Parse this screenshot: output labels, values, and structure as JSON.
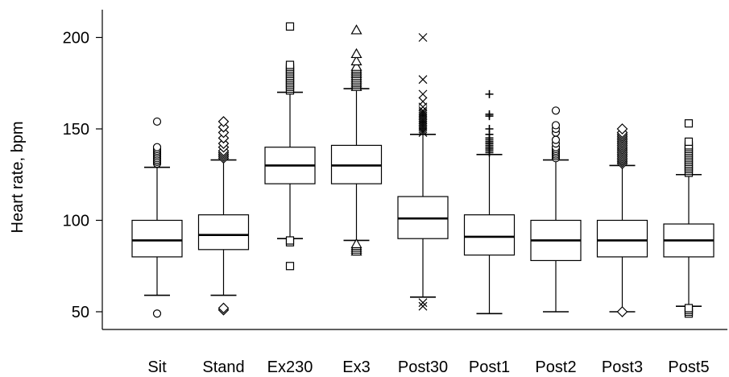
{
  "chart_data": {
    "type": "boxplot",
    "ylabel": "Heart rate, bpm",
    "ylim": [
      45,
      215
    ],
    "yticks": [
      50,
      100,
      150,
      200
    ],
    "grid": false,
    "categories": [
      "Sit",
      "Stand",
      "Ex230",
      "Ex3",
      "Post30",
      "Post1",
      "Post2",
      "Post3",
      "Post5"
    ],
    "boxes": [
      {
        "category": "Sit",
        "whisker_low": 59,
        "q1": 80,
        "median": 89,
        "q3": 100,
        "whisker_high": 129,
        "marker": "circle",
        "outliers": [
          49,
          131,
          132,
          133,
          134,
          135,
          136,
          137,
          138,
          139,
          140,
          154
        ]
      },
      {
        "category": "Stand",
        "whisker_low": 59,
        "q1": 84,
        "median": 92,
        "q3": 103,
        "whisker_high": 133,
        "marker": "diamond",
        "outliers": [
          51,
          52,
          134,
          135,
          136,
          137,
          138,
          140,
          142,
          145,
          148,
          151,
          154
        ]
      },
      {
        "category": "Ex230",
        "whisker_low": 90,
        "q1": 120,
        "median": 130,
        "q3": 140,
        "whisker_high": 170,
        "marker": "square",
        "outliers": [
          75,
          88,
          89,
          171,
          172,
          173,
          174,
          175,
          176,
          177,
          178,
          179,
          180,
          181,
          182,
          183,
          184,
          185,
          206
        ]
      },
      {
        "category": "Ex3",
        "whisker_low": 89,
        "q1": 120,
        "median": 130,
        "q3": 141,
        "whisker_high": 172,
        "marker": "triangle",
        "outliers": [
          83,
          84,
          85,
          86,
          87,
          173,
          174,
          175,
          176,
          177,
          178,
          179,
          180,
          181,
          182,
          183,
          184,
          187,
          191,
          204
        ]
      },
      {
        "category": "Post30",
        "whisker_low": 58,
        "q1": 90,
        "median": 101,
        "q3": 113,
        "whisker_high": 147,
        "marker": "x",
        "outliers": [
          53,
          55,
          148,
          149,
          150,
          151,
          152,
          153,
          154,
          155,
          156,
          157,
          158,
          159,
          160,
          162,
          165,
          169,
          177,
          200
        ]
      },
      {
        "category": "Post1",
        "whisker_low": 49,
        "q1": 81,
        "median": 91,
        "q3": 103,
        "whisker_high": 136,
        "marker": "plus",
        "outliers": [
          137,
          138,
          139,
          140,
          141,
          142,
          143,
          144,
          145,
          147,
          150,
          157,
          158,
          169
        ]
      },
      {
        "category": "Post2",
        "whisker_low": 50,
        "q1": 78,
        "median": 89,
        "q3": 100,
        "whisker_high": 133,
        "marker": "circle",
        "outliers": [
          134,
          135,
          136,
          137,
          138,
          139,
          140,
          142,
          144,
          148,
          150,
          152,
          160
        ]
      },
      {
        "category": "Post3",
        "whisker_low": 50,
        "q1": 80,
        "median": 89,
        "q3": 100,
        "whisker_high": 130,
        "marker": "diamond",
        "outliers": [
          50,
          131,
          132,
          133,
          134,
          135,
          136,
          137,
          138,
          139,
          140,
          141,
          142,
          143,
          144,
          145,
          146,
          147,
          148,
          150
        ]
      },
      {
        "category": "Post5",
        "whisker_low": 53,
        "q1": 80,
        "median": 89,
        "q3": 98,
        "whisker_high": 125,
        "marker": "square",
        "outliers": [
          49,
          50,
          51,
          52,
          126,
          127,
          128,
          129,
          130,
          131,
          132,
          133,
          134,
          135,
          136,
          137,
          138,
          139,
          140,
          141,
          143,
          153
        ]
      }
    ]
  }
}
